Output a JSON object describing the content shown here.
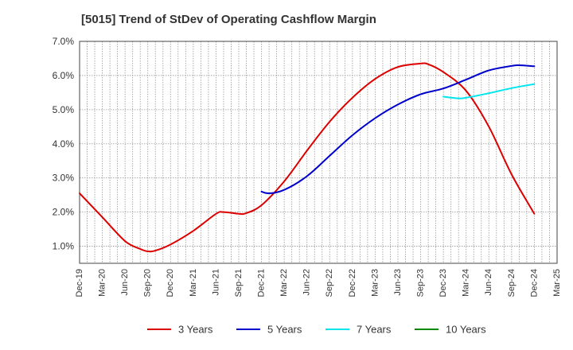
{
  "chart_data": {
    "type": "line",
    "title": "[5015]  Trend of StDev of Operating Cashflow Margin",
    "xlabel": "",
    "ylabel": "",
    "x_ticks": [
      "Dec-19",
      "Mar-20",
      "Jun-20",
      "Sep-20",
      "Dec-20",
      "Mar-21",
      "Jun-21",
      "Sep-21",
      "Dec-21",
      "Mar-22",
      "Jun-22",
      "Sep-22",
      "Dec-22",
      "Mar-23",
      "Jun-23",
      "Sep-23",
      "Dec-23",
      "Mar-24",
      "Jun-24",
      "Sep-24",
      "Dec-24",
      "Mar-25"
    ],
    "y_ticks": [
      "1.0%",
      "2.0%",
      "3.0%",
      "4.0%",
      "5.0%",
      "6.0%",
      "7.0%"
    ],
    "y_tick_values": [
      1.0,
      2.0,
      3.0,
      4.0,
      5.0,
      6.0,
      7.0
    ],
    "ylim": [
      0.5,
      7.0
    ],
    "grid": true,
    "legend_position": "bottom",
    "series": [
      {
        "name": "3 Years",
        "color": "#dd0000",
        "x": [
          "Dec-19",
          "Mar-20",
          "Jun-20",
          "Aug-20",
          "Sep-20",
          "Oct-20",
          "Dec-20",
          "Mar-21",
          "Jun-21",
          "Jul-21",
          "Sep-21",
          "Oct-21",
          "Dec-21",
          "Mar-22",
          "Jun-22",
          "Sep-22",
          "Dec-22",
          "Mar-23",
          "Jun-23",
          "Sep-23",
          "Oct-23",
          "Dec-23",
          "Mar-24",
          "Jun-24",
          "Sep-24",
          "Dec-24"
        ],
        "values": [
          2.55,
          1.85,
          1.15,
          0.92,
          0.85,
          0.87,
          1.05,
          1.45,
          1.95,
          2.0,
          1.95,
          1.97,
          2.2,
          2.9,
          3.8,
          4.65,
          5.35,
          5.9,
          6.25,
          6.35,
          6.33,
          6.1,
          5.55,
          4.5,
          3.1,
          1.95
        ]
      },
      {
        "name": "5 Years",
        "color": "#0000cc",
        "x": [
          "Dec-21",
          "Jan-22",
          "Mar-22",
          "Jun-22",
          "Sep-22",
          "Dec-22",
          "Mar-23",
          "Jun-23",
          "Sep-23",
          "Dec-23",
          "Mar-24",
          "Jun-24",
          "Sep-24",
          "Oct-24",
          "Dec-24"
        ],
        "values": [
          2.6,
          2.55,
          2.65,
          3.05,
          3.65,
          4.25,
          4.75,
          5.15,
          5.45,
          5.62,
          5.88,
          6.15,
          6.28,
          6.3,
          6.27
        ]
      },
      {
        "name": "7 Years",
        "color": "#00e5ee",
        "x": [
          "Dec-23",
          "Feb-24",
          "Mar-24",
          "Jun-24",
          "Sep-24",
          "Dec-24"
        ],
        "values": [
          5.38,
          5.33,
          5.35,
          5.48,
          5.63,
          5.75
        ]
      },
      {
        "name": "10 Years",
        "color": "#008800",
        "x": [],
        "values": []
      }
    ]
  }
}
